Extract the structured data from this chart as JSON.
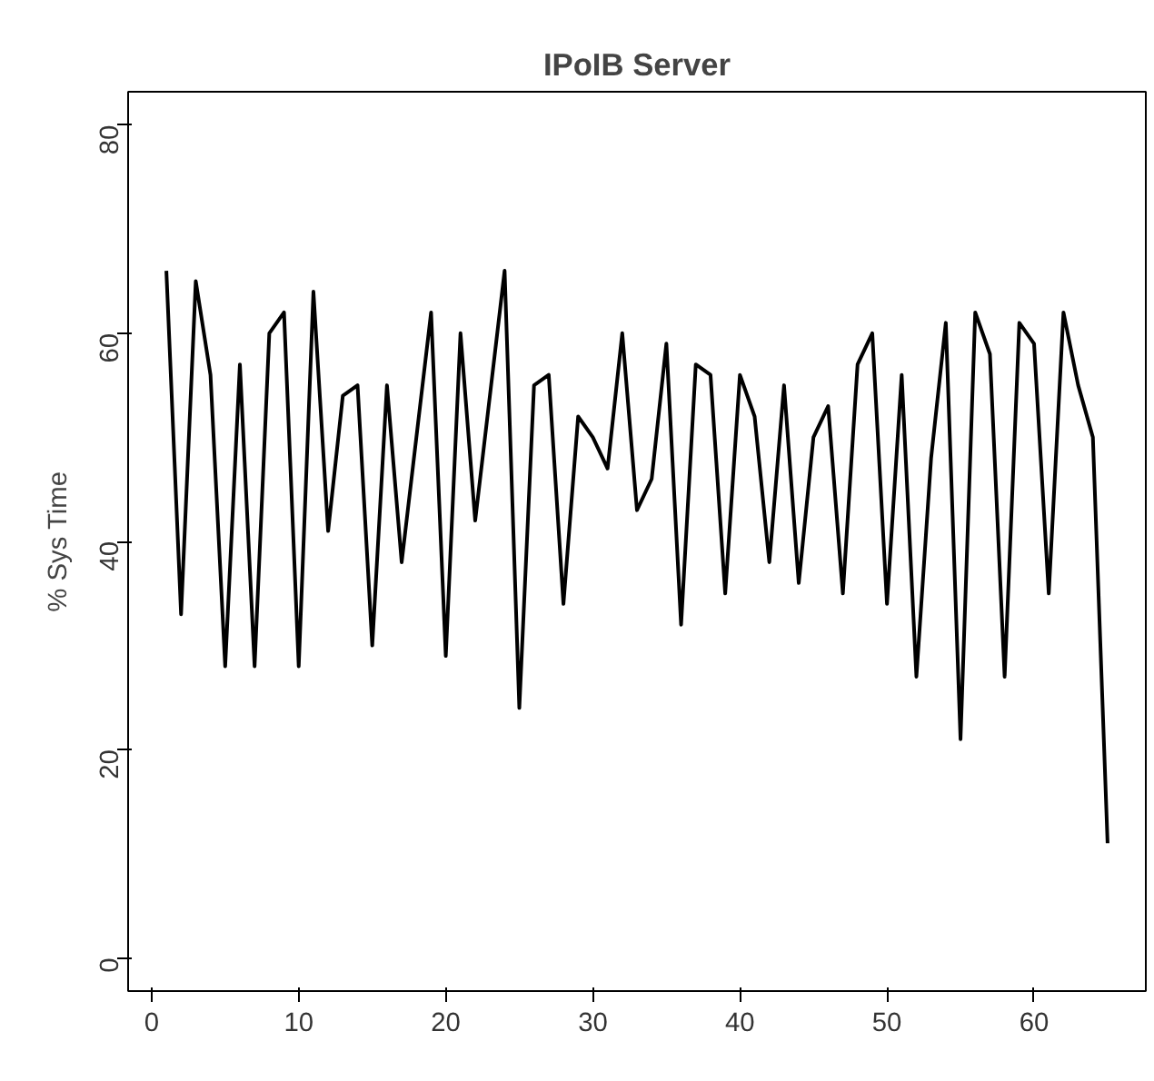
{
  "chart_data": {
    "type": "line",
    "title": "IPoIB Server",
    "ylabel": "% Sys Time",
    "x": [
      1,
      2,
      3,
      4,
      5,
      6,
      7,
      8,
      9,
      10,
      11,
      12,
      13,
      14,
      15,
      16,
      17,
      18,
      19,
      20,
      21,
      22,
      23,
      24,
      25,
      26,
      27,
      28,
      29,
      30,
      31,
      32,
      33,
      34,
      35,
      36,
      37,
      38,
      39,
      40,
      41,
      42,
      43,
      44,
      45,
      46,
      47,
      48,
      49,
      50,
      51,
      52,
      53,
      54,
      55,
      56,
      57,
      58,
      59,
      60,
      61,
      62,
      63,
      64,
      65
    ],
    "series": [
      {
        "color": "#000000",
        "values": [
          66,
          33,
          65,
          56,
          28,
          57,
          28,
          60,
          62,
          28,
          64,
          41,
          54,
          55,
          30,
          55,
          38,
          50,
          62,
          29,
          60,
          42,
          54,
          66,
          24,
          55,
          56,
          34,
          52,
          50,
          47,
          60,
          43,
          46,
          59,
          32,
          57,
          56,
          35,
          56,
          52,
          38,
          55,
          36,
          50,
          53,
          35,
          57,
          60,
          34,
          56,
          27,
          48,
          61,
          21,
          62,
          58,
          27,
          61,
          59,
          35,
          62,
          55,
          50,
          11
        ]
      }
    ],
    "xlim": [
      -1.6,
      67.6
    ],
    "ylim": [
      -3.2,
      83.2
    ],
    "xticks": [
      0,
      10,
      20,
      30,
      40,
      50,
      60
    ],
    "yticks": [
      0,
      20,
      40,
      60,
      80
    ],
    "grid": false,
    "marker": "none",
    "line_style": "solid"
  }
}
